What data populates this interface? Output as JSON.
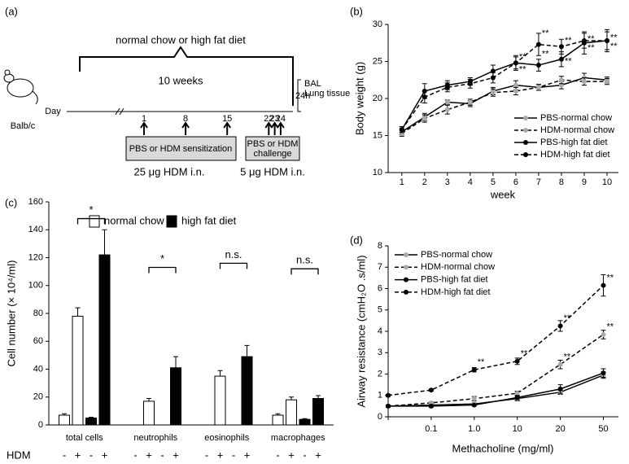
{
  "panel_labels": [
    "(a)",
    "(b)",
    "(c)",
    "(d)"
  ],
  "diagram": {
    "top_label": "normal chow or high fat diet",
    "duration": "10 weeks",
    "strain": "Balb/c",
    "axis_label": "Day",
    "days": [
      1,
      8,
      15,
      22,
      23,
      24
    ],
    "end_time": "24h",
    "readouts": [
      "BAL",
      "Lung tissue"
    ],
    "boxes": [
      {
        "label": [
          "PBS or HDM sensitization"
        ],
        "dose": "25 μg HDM  i.n."
      },
      {
        "label": [
          "PBS or HDM",
          "challenge"
        ],
        "dose": "5 μg HDM i.n."
      }
    ]
  },
  "chart_data": [
    {
      "type": "line",
      "xlabel": "week",
      "ylabel": "Body weight (g)",
      "x": [
        1,
        2,
        3,
        4,
        5,
        6,
        7,
        8,
        9,
        10
      ],
      "xlim": [
        0.4,
        10.5
      ],
      "xticks": [
        1,
        2,
        3,
        4,
        5,
        6,
        7,
        8,
        9,
        10
      ],
      "ylim": [
        10,
        30
      ],
      "yticks": [
        10,
        15,
        20,
        25,
        30
      ],
      "legend": "lower right",
      "series": [
        {
          "name": "PBS-normal chow",
          "color": "#aaaaaa",
          "dashed": false,
          "values": [
            15.5,
            17.5,
            19.5,
            19.3,
            21.0,
            21.8,
            21.5,
            21.8,
            22.8,
            22.5
          ],
          "errors": [
            0.4,
            0.5,
            0.3,
            0.4,
            0.5,
            0.6,
            0.4,
            0.5,
            0.6,
            0.4
          ]
        },
        {
          "name": "HDM-normal chow",
          "color": "#aaaaaa",
          "dashed": true,
          "values": [
            15.3,
            17.3,
            18.5,
            19.5,
            20.8,
            21.0,
            21.5,
            22.5,
            22.3,
            22.3
          ],
          "errors": [
            0.4,
            0.5,
            0.6,
            0.4,
            0.5,
            0.5,
            0.4,
            0.5,
            0.5,
            0.4
          ]
        },
        {
          "name": "PBS-high fat diet",
          "color": "#000000",
          "dashed": false,
          "values": [
            15.8,
            21.0,
            21.8,
            22.3,
            23.7,
            24.8,
            24.5,
            25.3,
            27.5,
            27.8
          ],
          "errors": [
            0.4,
            1.0,
            0.6,
            0.5,
            0.8,
            1.0,
            0.8,
            1.0,
            1.5,
            1.5
          ]
        },
        {
          "name": "HDM-high fat diet",
          "color": "#000000",
          "dashed": true,
          "values": [
            15.8,
            20.2,
            21.5,
            22.0,
            22.8,
            24.8,
            27.3,
            27.0,
            27.8,
            27.8
          ],
          "errors": [
            0.4,
            0.8,
            0.6,
            0.6,
            0.7,
            0.8,
            1.5,
            1.0,
            1.0,
            1.2
          ]
        }
      ],
      "annotations": [
        {
          "text": "**",
          "x": 6,
          "y": 25.6
        },
        {
          "text": "**",
          "x": 6,
          "y": 23.9
        },
        {
          "text": "**",
          "x": 7,
          "y": 28.8
        },
        {
          "text": "**",
          "x": 7,
          "y": 26.0
        },
        {
          "text": "**",
          "x": 8,
          "y": 27.8
        },
        {
          "text": "**",
          "x": 8,
          "y": 25.0
        },
        {
          "text": "**",
          "x": 9,
          "y": 28.0
        },
        {
          "text": "**",
          "x": 9,
          "y": 26.8
        },
        {
          "text": "**",
          "x": 10,
          "y": 28.2
        },
        {
          "text": "**",
          "x": 10,
          "y": 27.0
        }
      ]
    },
    {
      "type": "bar",
      "ylabel": "Cell number (× 10⁴/ml)",
      "categories": [
        "total cells",
        "neutrophils",
        "eosinophils",
        "macrophages"
      ],
      "ylim": [
        0,
        160
      ],
      "yticks": [
        0,
        20,
        40,
        60,
        80,
        100,
        120,
        140,
        160
      ],
      "group_title": "HDM",
      "group_labels": [
        "-",
        "+"
      ],
      "series": [
        {
          "name": "normal chow",
          "color": "#ffffff",
          "values": [
            [
              7,
              78
            ],
            [
              0,
              17
            ],
            [
              0,
              35
            ],
            [
              7,
              18
            ]
          ],
          "errors": [
            [
              1,
              6
            ],
            [
              0,
              2
            ],
            [
              0,
              4
            ],
            [
              1,
              2
            ]
          ]
        },
        {
          "name": "high fat diet",
          "color": "#000000",
          "values": [
            [
              5,
              122
            ],
            [
              0,
              41
            ],
            [
              0,
              49
            ],
            [
              4,
              19
            ]
          ],
          "errors": [
            [
              0.5,
              18
            ],
            [
              0,
              8
            ],
            [
              0,
              8
            ],
            [
              0.5,
              2
            ]
          ]
        }
      ],
      "significance": [
        {
          "category": 0,
          "label": "*",
          "y": 148
        },
        {
          "category": 1,
          "label": "*",
          "y": 113
        },
        {
          "category": 2,
          "label": "n.s.",
          "y": 116
        },
        {
          "category": 3,
          "label": "n.s.",
          "y": 112
        }
      ]
    },
    {
      "type": "line",
      "xlabel": "Methacholine (mg/ml)",
      "ylabel": "Airway resistance (cmH₂O .s/ml)",
      "categories": [
        null,
        "0.1",
        "1.0",
        "10",
        "20",
        "50"
      ],
      "ylim": [
        0,
        8
      ],
      "yticks": [
        0,
        1,
        2,
        3,
        4,
        5,
        6,
        7,
        8
      ],
      "legend": "upper left",
      "series": [
        {
          "name": "PBS-normal chow",
          "color": "#aaaaaa",
          "dashed": false,
          "values": [
            0.5,
            0.55,
            0.6,
            0.85,
            1.15,
            1.95
          ],
          "errors": [
            0.05,
            0.05,
            0.05,
            0.1,
            0.1,
            0.15
          ]
        },
        {
          "name": "HDM-normal chow",
          "color": "#aaaaaa",
          "dashed": true,
          "values": [
            0.5,
            0.65,
            0.85,
            1.1,
            2.45,
            3.85
          ],
          "errors": [
            0.05,
            0.05,
            0.1,
            0.1,
            0.2,
            0.2
          ]
        },
        {
          "name": "PBS-high fat diet",
          "color": "#000000",
          "dashed": false,
          "values": [
            0.5,
            0.5,
            0.55,
            0.9,
            1.3,
            2.05
          ],
          "errors": [
            0.05,
            0.05,
            0.05,
            0.1,
            0.2,
            0.2
          ]
        },
        {
          "name": "HDM-high fat diet",
          "color": "#000000",
          "dashed": true,
          "values": [
            1.0,
            1.25,
            2.2,
            2.6,
            4.25,
            6.15
          ],
          "errors": [
            0.05,
            0.05,
            0.1,
            0.15,
            0.25,
            0.5
          ]
        }
      ],
      "annotations": [
        {
          "text": "**",
          "x": "1.0",
          "y": 2.55
        },
        {
          "text": "**",
          "x": "10",
          "y": 2.95
        },
        {
          "text": "**",
          "x": "20",
          "y": 4.6
        },
        {
          "text": "**",
          "x": "20",
          "y": 2.8
        },
        {
          "text": "**",
          "x": "50",
          "y": 6.5
        },
        {
          "text": "**",
          "x": "50",
          "y": 4.2
        }
      ]
    }
  ]
}
